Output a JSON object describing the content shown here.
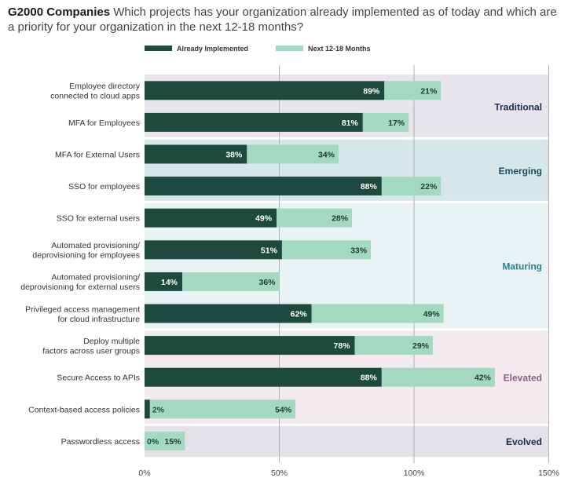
{
  "title": {
    "lead": "G2000 Companies",
    "rest": "Which projects has your organization already implemented as of today and which are a priority for your organization in the next 12-18 months?"
  },
  "chart_data": {
    "type": "bar",
    "orientation": "horizontal",
    "stacked": true,
    "categories": [
      "Employee directory connected to cloud apps",
      "MFA for Employees",
      "MFA for External Users",
      "SSO for employees",
      "SSO for external users",
      "Automated provisioning/ deprovisioning for employees",
      "Automated provisioning/ deprovisioning for external users",
      "Privileged access management for cloud infrastructure",
      "Deploy multiple factors across user groups",
      "Secure Access to APIs",
      "Context-based access policies",
      "Passwordless access"
    ],
    "category_lines": [
      [
        "Employee directory",
        "connected to cloud apps"
      ],
      [
        "MFA for Employees"
      ],
      [
        "MFA for External Users"
      ],
      [
        "SSO for employees"
      ],
      [
        "SSO for external users"
      ],
      [
        "Automated provisioning/",
        "deprovisioning for employees"
      ],
      [
        "Automated provisioning/",
        "deprovisioning for external users"
      ],
      [
        "Privileged access management",
        "for cloud infrastructure"
      ],
      [
        "Deploy multiple",
        "factors across user groups"
      ],
      [
        "Secure Access to APIs"
      ],
      [
        "Context-based access policies"
      ],
      [
        "Passwordless access"
      ]
    ],
    "series": [
      {
        "name": "Already Implemented",
        "color": "#1d4a3c",
        "values": [
          89,
          81,
          38,
          88,
          49,
          51,
          14,
          62,
          78,
          88,
          2,
          0
        ]
      },
      {
        "name": "Next 12-18 Months",
        "color": "#a3d9c1",
        "values": [
          21,
          17,
          34,
          22,
          28,
          33,
          36,
          49,
          29,
          42,
          54,
          15
        ]
      }
    ],
    "value_suffix": "%",
    "xlim": [
      0,
      150
    ],
    "xticks": [
      "0%",
      "50%",
      "100%",
      "150%"
    ],
    "xtick_values": [
      0,
      50,
      100,
      150
    ],
    "grid": true,
    "legend_position": "top",
    "groups": [
      {
        "name": "Traditional",
        "start": 0,
        "end": 1,
        "band_color": "#e8e5ec",
        "label_color": "#1c2b52"
      },
      {
        "name": "Emerging",
        "start": 2,
        "end": 3,
        "band_color": "#d6e7ea",
        "label_color": "#1d4a5c"
      },
      {
        "name": "Maturing",
        "start": 4,
        "end": 7,
        "band_color": "#eaf3f4",
        "label_color": "#2a7f8f"
      },
      {
        "name": "Elevated",
        "start": 8,
        "end": 10,
        "band_color": "#f3eaef",
        "label_color": "#8a5f7e"
      },
      {
        "name": "Evolved",
        "start": 11,
        "end": 11,
        "band_color": "#e4e1e8",
        "label_color": "#1c2b52"
      }
    ]
  }
}
